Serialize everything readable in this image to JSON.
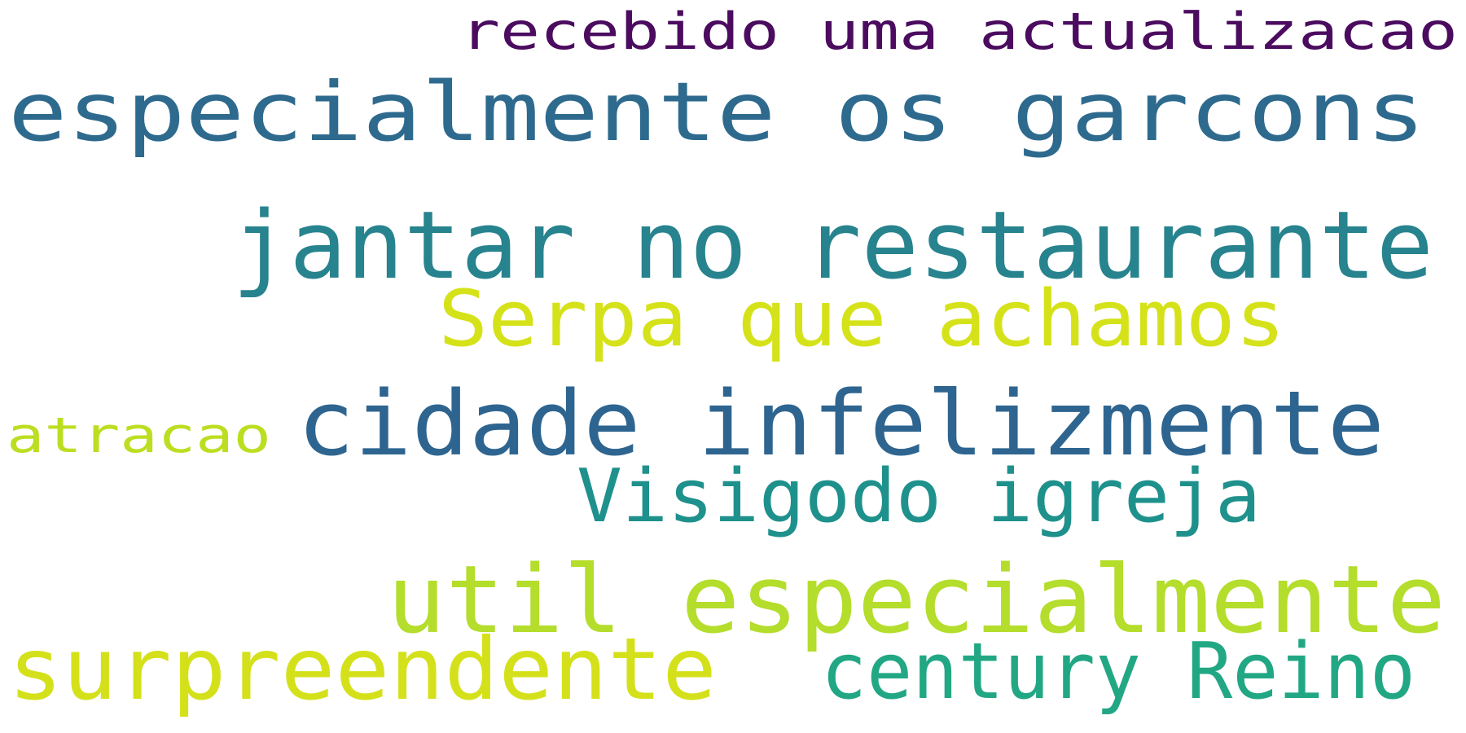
{
  "word_cloud": {
    "background": "#ffffff",
    "words": [
      {
        "text": "recebido uma actualizacao",
        "color": "#4b0c5f"
      },
      {
        "text": "especialmente os garcons",
        "color": "#2e6a8e"
      },
      {
        "text": "jantar no restaurante",
        "color": "#27838e"
      },
      {
        "text": "Serpa que achamos",
        "color": "#d5e21a"
      },
      {
        "text": "atracao",
        "color": "#bcde22"
      },
      {
        "text": "cidade infelizmente",
        "color": "#2e6590"
      },
      {
        "text": "Visigodo igreja",
        "color": "#1f918c"
      },
      {
        "text": "util especialmente",
        "color": "#b4dd2c"
      },
      {
        "text": "surpreendente",
        "color": "#d4e11a"
      },
      {
        "text": "century Reino",
        "color": "#22a784"
      }
    ]
  }
}
